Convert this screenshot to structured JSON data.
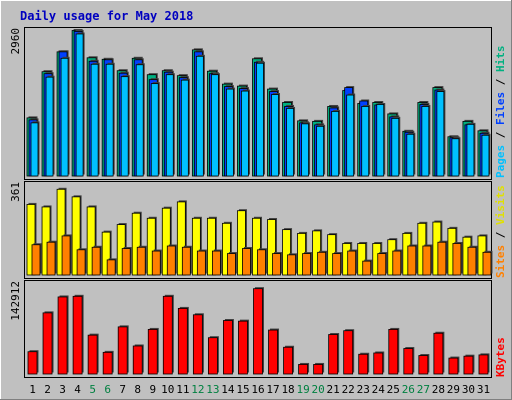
{
  "chart_data": [
    {
      "type": "bar",
      "title": "Daily usage for May 2018",
      "panel": "pages-files-hits",
      "ymax_label": "2960",
      "ylim": [
        0,
        2960
      ],
      "legend": [
        {
          "name": "Pages",
          "color": "#00c0ff"
        },
        {
          "name": "Files",
          "color": "#0040ff"
        },
        {
          "name": "Hits",
          "color": "#00b080"
        }
      ],
      "categories": [
        "1",
        "2",
        "3",
        "4",
        "5",
        "6",
        "7",
        "8",
        "9",
        "10",
        "11",
        "12",
        "13",
        "14",
        "15",
        "16",
        "17",
        "18",
        "19",
        "20",
        "21",
        "22",
        "23",
        "24",
        "25",
        "26",
        "27",
        "28",
        "29",
        "30",
        "31"
      ],
      "series": [
        {
          "name": "Hits",
          "values": [
            1170,
            2100,
            2500,
            2930,
            2380,
            2350,
            2120,
            2370,
            2040,
            2120,
            2020,
            2540,
            2110,
            1850,
            1810,
            2360,
            1750,
            1480,
            1110,
            1100,
            1400,
            1720,
            1460,
            1480,
            1250,
            900,
            1480,
            1780,
            790,
            1100,
            910
          ]
        },
        {
          "name": "Files",
          "values": [
            1130,
            2060,
            2500,
            2910,
            2310,
            2340,
            2070,
            2340,
            1940,
            2090,
            1980,
            2500,
            2060,
            1800,
            1760,
            2290,
            1700,
            1400,
            1070,
            1030,
            1370,
            1780,
            1510,
            1430,
            1190,
            880,
            1440,
            1730,
            770,
            1030,
            860
          ]
        },
        {
          "name": "Pages",
          "values": [
            1070,
            1990,
            2370,
            2860,
            2250,
            2250,
            2000,
            2240,
            1860,
            2040,
            1930,
            2410,
            2040,
            1750,
            1710,
            2270,
            1640,
            1360,
            1050,
            1000,
            1300,
            1630,
            1400,
            1440,
            1160,
            840,
            1400,
            1700,
            750,
            1040,
            820
          ]
        }
      ]
    },
    {
      "type": "bar",
      "panel": "visits-sites",
      "ymax_label": "361",
      "ylim": [
        0,
        361
      ],
      "legend": [
        {
          "name": "Sites",
          "color": "#ff8000"
        },
        {
          "name": "Visits",
          "color": "#ffff00"
        }
      ],
      "categories": [
        "1",
        "2",
        "3",
        "4",
        "5",
        "6",
        "7",
        "8",
        "9",
        "10",
        "11",
        "12",
        "13",
        "14",
        "15",
        "16",
        "17",
        "18",
        "19",
        "20",
        "21",
        "22",
        "23",
        "24",
        "25",
        "26",
        "27",
        "28",
        "29",
        "30",
        "31"
      ],
      "series": [
        {
          "name": "Visits",
          "values": [
            280,
            270,
            340,
            310,
            270,
            170,
            200,
            245,
            225,
            265,
            290,
            225,
            225,
            205,
            255,
            225,
            220,
            180,
            165,
            175,
            160,
            125,
            125,
            125,
            140,
            165,
            205,
            210,
            185,
            150,
            155
          ]
        },
        {
          "name": "Sites",
          "values": [
            120,
            130,
            155,
            100,
            110,
            60,
            105,
            110,
            95,
            115,
            110,
            95,
            95,
            85,
            105,
            100,
            85,
            80,
            85,
            90,
            85,
            95,
            55,
            85,
            95,
            115,
            115,
            130,
            125,
            110,
            90
          ]
        }
      ]
    },
    {
      "type": "bar",
      "panel": "kbytes",
      "ymax_label": "142912",
      "ylim": [
        0,
        142912
      ],
      "legend": [
        {
          "name": "KBytes",
          "color": "#ff0000"
        }
      ],
      "categories": [
        "1",
        "2",
        "3",
        "4",
        "5",
        "6",
        "7",
        "8",
        "9",
        "10",
        "11",
        "12",
        "13",
        "14",
        "15",
        "16",
        "17",
        "18",
        "19",
        "20",
        "21",
        "22",
        "23",
        "24",
        "25",
        "26",
        "27",
        "28",
        "29",
        "30",
        "31"
      ],
      "series": [
        {
          "name": "KBytes",
          "values": [
            35000,
            96000,
            121000,
            122000,
            61000,
            34000,
            74000,
            44000,
            70000,
            122000,
            103000,
            93000,
            57000,
            84000,
            83000,
            134000,
            69000,
            42000,
            15000,
            15000,
            62000,
            68000,
            31000,
            33000,
            70000,
            40000,
            29000,
            64000,
            25000,
            28000,
            30000
          ]
        }
      ]
    }
  ],
  "day_colors": [
    "#000000",
    "#000000",
    "#000000",
    "#000000",
    "#008040",
    "#008040",
    "#000000",
    "#000000",
    "#000000",
    "#000000",
    "#000000",
    "#008040",
    "#008040",
    "#000000",
    "#000000",
    "#000000",
    "#000000",
    "#000000",
    "#008040",
    "#008040",
    "#000000",
    "#000000",
    "#000000",
    "#000000",
    "#000000",
    "#008040",
    "#008040",
    "#000000",
    "#000000",
    "#000000",
    "#000000"
  ]
}
